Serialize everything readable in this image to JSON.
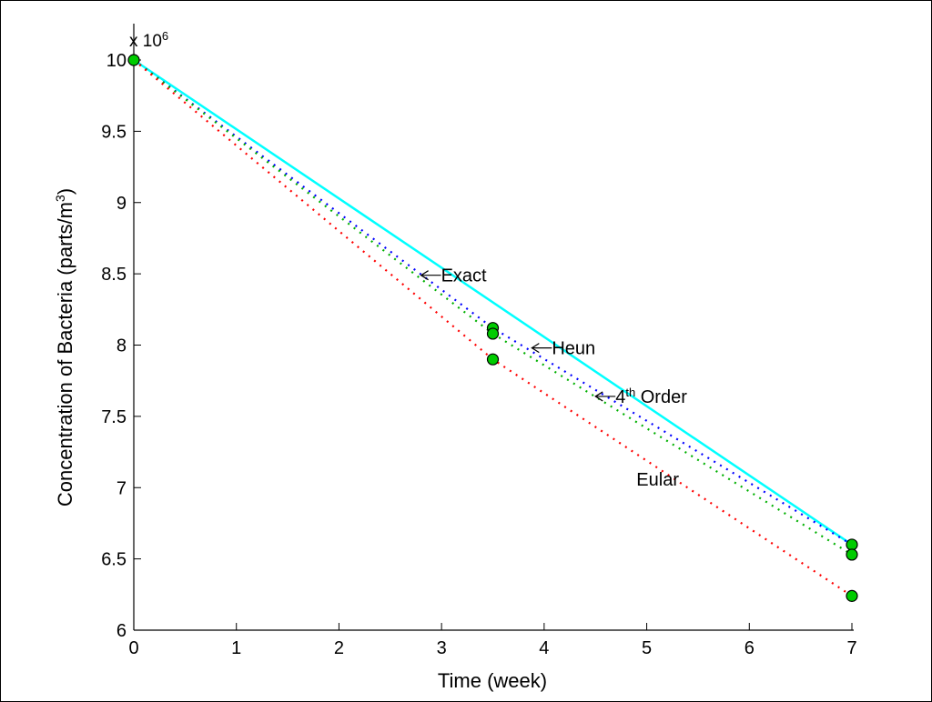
{
  "chart_data": {
    "type": "line",
    "xlabel": "Time (week)",
    "ylabel_main": "Concentration of Bacteria (parts/m",
    "ylabel_sup": "3",
    "ylabel_tail": ")",
    "y_multiplier": {
      "base": "x 10",
      "exp": "6"
    },
    "xlim": [
      0,
      7
    ],
    "ylim": [
      6,
      10
    ],
    "x_ticks": [
      "0",
      "1",
      "2",
      "3",
      "4",
      "5",
      "6",
      "7"
    ],
    "y_ticks": [
      "6",
      "6.5",
      "7",
      "7.5",
      "8",
      "8.5",
      "9",
      "9.5",
      "10"
    ],
    "grid": false,
    "series": [
      {
        "label_id": "exact",
        "color": "#00ffff",
        "style": "solid",
        "x": [
          0,
          7
        ],
        "y": [
          10,
          6.6
        ]
      },
      {
        "label_id": "fourth",
        "color": "#0000ff",
        "style": "dotted",
        "x": [
          0,
          3.5,
          7
        ],
        "y": [
          10,
          8.12,
          6.6
        ]
      },
      {
        "label_id": "heun",
        "color": "#00b000",
        "style": "dotted",
        "x": [
          0,
          3.5,
          7
        ],
        "y": [
          10,
          8.08,
          6.53
        ]
      },
      {
        "label_id": "eular",
        "color": "#ff0000",
        "style": "dotted",
        "x": [
          0,
          3.5,
          7
        ],
        "y": [
          10,
          7.9,
          6.24
        ]
      }
    ],
    "markers": {
      "color": "#00cc00",
      "points": [
        {
          "x": 0,
          "y": 10
        },
        {
          "x": 3.5,
          "y": 8.12
        },
        {
          "x": 3.5,
          "y": 8.08
        },
        {
          "x": 3.5,
          "y": 7.9
        },
        {
          "x": 7,
          "y": 6.6
        },
        {
          "x": 7,
          "y": 6.53
        },
        {
          "x": 7,
          "y": 6.24
        }
      ]
    },
    "annotations": [
      {
        "id": "exact",
        "text": "Exact",
        "x": 2.8,
        "y": 8.49,
        "arrow": true
      },
      {
        "id": "heun",
        "text": "Heun",
        "x": 3.88,
        "y": 7.98,
        "arrow": true
      },
      {
        "id": "fourth",
        "text_pre": "4",
        "text_sup": "th",
        "text": " Order",
        "x": 4.5,
        "y": 7.64,
        "arrow": true
      },
      {
        "id": "eular",
        "text": "Eular",
        "x": 4.9,
        "y": 7.06,
        "arrow": false
      }
    ]
  }
}
